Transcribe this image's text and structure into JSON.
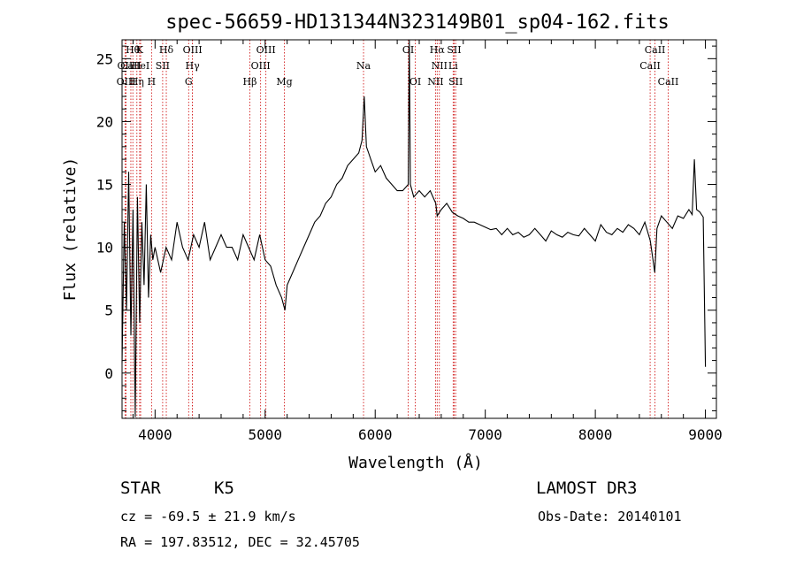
{
  "chart_data": {
    "type": "line",
    "title": "spec-56659-HD131344N323149B01_sp04-162.fits",
    "xlabel": "Wavelength (Å)",
    "ylabel": "Flux (relative)",
    "xlim": [
      3700,
      9100
    ],
    "ylim": [
      -3.6,
      26.5
    ],
    "xticks": [
      4000,
      5000,
      6000,
      7000,
      8000,
      9000
    ],
    "yticks": [
      0,
      5,
      10,
      15,
      20,
      25
    ],
    "grid": false,
    "series": [
      {
        "name": "spectrum",
        "x": [
          3700,
          3720,
          3740,
          3760,
          3780,
          3800,
          3820,
          3840,
          3860,
          3880,
          3900,
          3920,
          3940,
          3960,
          3980,
          4000,
          4050,
          4100,
          4150,
          4200,
          4250,
          4300,
          4350,
          4400,
          4450,
          4500,
          4550,
          4600,
          4650,
          4700,
          4750,
          4800,
          4850,
          4900,
          4950,
          5000,
          5050,
          5100,
          5150,
          5180,
          5200,
          5250,
          5300,
          5350,
          5400,
          5450,
          5500,
          5550,
          5600,
          5650,
          5700,
          5750,
          5800,
          5850,
          5880,
          5900,
          5920,
          5940,
          5960,
          6000,
          6050,
          6100,
          6150,
          6200,
          6250,
          6280,
          6300,
          6310,
          6320,
          6350,
          6400,
          6450,
          6500,
          6550,
          6563,
          6600,
          6650,
          6700,
          6750,
          6800,
          6850,
          6900,
          6950,
          7000,
          7050,
          7100,
          7150,
          7200,
          7250,
          7300,
          7350,
          7400,
          7450,
          7500,
          7550,
          7600,
          7650,
          7700,
          7750,
          7800,
          7850,
          7900,
          7950,
          8000,
          8050,
          8100,
          8150,
          8200,
          8250,
          8300,
          8350,
          8400,
          8450,
          8500,
          8540,
          8560,
          8600,
          8650,
          8700,
          8750,
          8800,
          8850,
          8880,
          8900,
          8920,
          8950,
          8980,
          9000
        ],
        "y": [
          0.8,
          12,
          5,
          16,
          3,
          13,
          -3.5,
          14,
          4,
          12,
          7,
          15,
          6,
          11,
          9,
          10,
          8,
          10,
          9,
          12,
          10,
          9,
          11,
          10,
          12,
          9,
          10,
          11,
          10,
          10,
          9,
          11,
          10,
          9,
          11,
          9,
          8.5,
          7,
          6,
          5,
          7,
          8,
          9,
          10,
          11,
          12,
          12.5,
          13.5,
          14,
          15,
          15.5,
          16.5,
          17,
          17.5,
          18.5,
          22,
          18,
          17.5,
          17,
          16,
          16.5,
          15.5,
          15,
          14.5,
          14.5,
          14.8,
          15,
          26.5,
          15,
          14,
          14.5,
          14,
          14.5,
          13.5,
          12.5,
          13,
          13.5,
          12.8,
          12.5,
          12.3,
          12,
          12,
          11.8,
          11.6,
          11.4,
          11.5,
          11,
          11.5,
          11,
          11.2,
          10.8,
          11,
          11.5,
          11,
          10.5,
          11.3,
          11,
          10.8,
          11.2,
          11,
          10.9,
          11.5,
          11,
          10.5,
          11.8,
          11.2,
          11,
          11.5,
          11.2,
          11.8,
          11.5,
          11,
          12,
          10.5,
          8,
          11.5,
          12.5,
          12,
          11.5,
          12.5,
          12.3,
          13,
          12.6,
          17,
          13,
          12.8,
          12.4,
          0.5
        ]
      }
    ],
    "spectral_lines": [
      {
        "label": "Hθ",
        "x": 3798,
        "row": 0
      },
      {
        "label": "OII",
        "x": 3727,
        "row": 1
      },
      {
        "label": "OIII",
        "x": 3737,
        "row": 2
      },
      {
        "label": "CaII",
        "x": 3780,
        "row": 1
      },
      {
        "label": "Hη",
        "x": 3835,
        "row": 2
      },
      {
        "label": "K",
        "x": 3860,
        "row": 0
      },
      {
        "label": "HeI",
        "x": 3869,
        "row": 1
      },
      {
        "label": "H",
        "x": 3968,
        "row": 2
      },
      {
        "label": "SII",
        "x": 4069,
        "row": 1
      },
      {
        "label": "Hδ",
        "x": 4102,
        "row": 0
      },
      {
        "label": "G",
        "x": 4305,
        "row": 2
      },
      {
        "label": "OIII",
        "x": 4340,
        "row": 0
      },
      {
        "label": "Hγ",
        "x": 4340,
        "row": 1
      },
      {
        "label": "Hβ",
        "x": 4861,
        "row": 2
      },
      {
        "label": "OIII",
        "x": 5007,
        "row": 0
      },
      {
        "label": "OIII",
        "x": 4959,
        "row": 1
      },
      {
        "label": "Mg",
        "x": 5175,
        "row": 2
      },
      {
        "label": "Na",
        "x": 5894,
        "row": 1
      },
      {
        "label": "OI",
        "x": 6300,
        "row": 0
      },
      {
        "label": "OI",
        "x": 6364,
        "row": 2
      },
      {
        "label": "Hα",
        "x": 6563,
        "row": 0
      },
      {
        "label": "NII",
        "x": 6583,
        "row": 1
      },
      {
        "label": "NII",
        "x": 6548,
        "row": 2
      },
      {
        "label": "SII",
        "x": 6717,
        "row": 0
      },
      {
        "label": "Li",
        "x": 6708,
        "row": 1
      },
      {
        "label": "SII",
        "x": 6731,
        "row": 2
      },
      {
        "label": "CaII",
        "x": 8542,
        "row": 0
      },
      {
        "label": "CaII",
        "x": 8498,
        "row": 1
      },
      {
        "label": "CaII",
        "x": 8662,
        "row": 2
      }
    ],
    "colors": {
      "spectrum": "#000000",
      "line_markers": "#cc0000",
      "axes": "#000000"
    }
  },
  "info": {
    "object_class": "STAR",
    "subclass": "K5",
    "survey": "LAMOST DR3",
    "redshift": "cz = -69.5 ± 21.9 km/s",
    "obs_date": "Obs-Date: 20140101",
    "coords": "RA = 197.83512, DEC =  32.45705"
  }
}
